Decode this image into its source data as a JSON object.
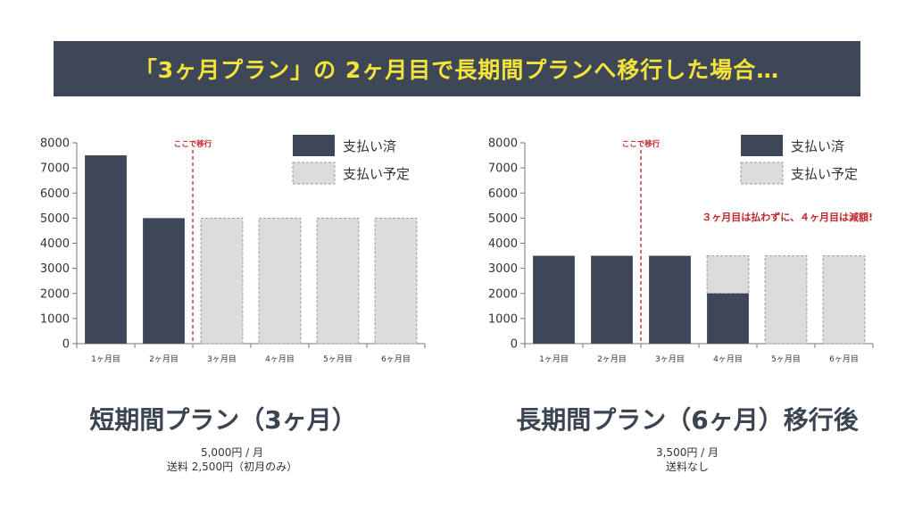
{
  "title": "「3ヶ月プラン」の 2ヶ月目で長期間プランへ移行した場合…",
  "colors": {
    "paid": "#3d4757",
    "planned": "#dcdcdc",
    "marker": "#c0262b",
    "banner_text": "#f3e33a"
  },
  "chart_data": [
    {
      "type": "bar",
      "categories": [
        "1ヶ月目",
        "2ヶ月目",
        "3ヶ月目",
        "4ヶ月目",
        "5ヶ月目",
        "6ヶ月目"
      ],
      "yticks": [
        0,
        1000,
        2000,
        3000,
        4000,
        5000,
        6000,
        7000,
        8000
      ],
      "ylim": [
        0,
        8000
      ],
      "series": [
        {
          "name": "支払い済",
          "values": [
            7500,
            5000,
            0,
            0,
            0,
            0
          ]
        },
        {
          "name": "支払い予定",
          "values": [
            0,
            0,
            5000,
            5000,
            5000,
            5000
          ]
        }
      ],
      "marker": {
        "label": "ここで移行",
        "after_category": "2ヶ月目"
      },
      "legend": [
        "支払い済",
        "支払い予定"
      ],
      "annotation": ""
    },
    {
      "type": "bar",
      "categories": [
        "1ヶ月目",
        "2ヶ月目",
        "3ヶ月目",
        "4ヶ月目",
        "5ヶ月目",
        "6ヶ月目"
      ],
      "yticks": [
        0,
        1000,
        2000,
        3000,
        4000,
        5000,
        6000,
        7000,
        8000
      ],
      "ylim": [
        0,
        8000
      ],
      "series": [
        {
          "name": "支払い済",
          "values": [
            3500,
            3500,
            3500,
            2000,
            0,
            0
          ]
        },
        {
          "name": "支払い予定",
          "values": [
            0,
            0,
            0,
            1500,
            3500,
            3500
          ]
        }
      ],
      "marker": {
        "label": "ここで移行",
        "after_category": "2ヶ月目"
      },
      "legend": [
        "支払い済",
        "支払い予定"
      ],
      "annotation": "３ヶ月目は払わずに、４ヶ月目は減額!"
    }
  ],
  "plans": [
    {
      "title": "短期間プラン（3ヶ月）",
      "lines": [
        "5,000円 / 月",
        "送料 2,500円（初月のみ）"
      ]
    },
    {
      "title": "長期間プラン（6ヶ月）移行後",
      "lines": [
        "3,500円 / 月",
        "送料なし"
      ]
    }
  ]
}
